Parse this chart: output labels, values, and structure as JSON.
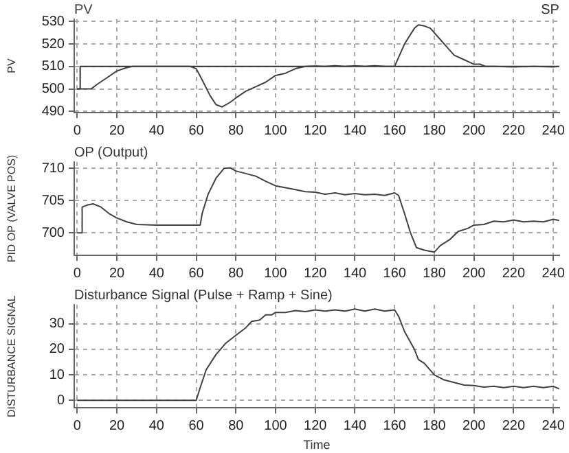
{
  "chart_data": [
    {
      "type": "line",
      "ylabel": "PV",
      "xlim": [
        -1.5,
        243
      ],
      "xticks": [
        0,
        20,
        40,
        60,
        80,
        100,
        120,
        140,
        160,
        180,
        200,
        220,
        240
      ],
      "ylim": [
        489.5,
        531
      ],
      "yticks": [
        490,
        500,
        510,
        520,
        530
      ],
      "grid": true,
      "legend": "top",
      "series": [
        {
          "name": "PV",
          "color": "#404040",
          "x": [
            0,
            7,
            10,
            15,
            20,
            25,
            28,
            57,
            60,
            63,
            67,
            70,
            73,
            77,
            80,
            85,
            90,
            95,
            100,
            105,
            110,
            115,
            120,
            125,
            130,
            135,
            140,
            145,
            150,
            155,
            160,
            162,
            165,
            170,
            172,
            175,
            178,
            182,
            186,
            190,
            195,
            200,
            203,
            206,
            210,
            220,
            230,
            240,
            243
          ],
          "values": [
            500,
            500,
            502,
            505,
            508,
            509.5,
            510,
            510,
            509,
            504,
            497,
            493,
            492,
            494,
            496,
            499,
            501,
            503,
            506,
            507,
            509,
            510,
            510.2,
            510,
            510.3,
            510,
            510.3,
            510,
            510.3,
            510,
            510,
            514,
            520,
            527,
            528.5,
            528,
            527,
            523,
            519,
            515,
            513,
            511,
            511,
            510,
            510,
            509.8,
            510,
            509.8,
            510
          ]
        },
        {
          "name": "SP",
          "color": "#303030",
          "x": [
            0,
            1.5,
            1.5,
            243
          ],
          "values": [
            500,
            500,
            510,
            510
          ]
        }
      ]
    },
    {
      "type": "line",
      "title": "OP (Output)",
      "ylabel": "PID OP (VALVE POS)",
      "xlim": [
        -1.5,
        243
      ],
      "xticks": [
        0,
        20,
        40,
        60,
        80,
        100,
        120,
        140,
        160,
        180,
        200,
        220,
        240
      ],
      "ylim": [
        696.5,
        711
      ],
      "yticks": [
        700,
        705,
        710
      ],
      "grid": true,
      "series": [
        {
          "color": "#404040",
          "x": [
            0,
            2,
            2.5,
            5,
            8,
            12,
            16,
            20,
            25,
            30,
            40,
            62,
            63,
            66,
            70,
            74,
            77,
            80,
            85,
            90,
            95,
            100,
            105,
            110,
            115,
            120,
            125,
            130,
            135,
            140,
            145,
            150,
            155,
            160,
            162,
            165,
            168,
            171,
            175,
            180,
            183,
            188,
            192,
            197,
            200,
            205,
            210,
            215,
            220,
            225,
            230,
            235,
            240,
            243
          ],
          "values": [
            700,
            700,
            704,
            704.3,
            704.5,
            704,
            703,
            702.3,
            701.7,
            701.3,
            701.2,
            701.2,
            703,
            706,
            708.5,
            710,
            710.1,
            709.6,
            709.2,
            708.8,
            708,
            707.3,
            707,
            706.7,
            706.4,
            706.3,
            706,
            706.2,
            705.9,
            706.1,
            705.9,
            706,
            705.8,
            706.2,
            705.8,
            703,
            700,
            697.7,
            697.3,
            697,
            698,
            699,
            700.2,
            700.7,
            701.2,
            701.3,
            701.8,
            701.7,
            702,
            701.7,
            701.8,
            701.7,
            702.1,
            701.9
          ]
        }
      ]
    },
    {
      "type": "line",
      "title": "Disturbance Signal (Pulse + Ramp + Sine)",
      "xlabel": "Time",
      "ylabel": "DISTURBANCE SIGNAL",
      "xlim": [
        -1.5,
        243
      ],
      "xticks": [
        0,
        20,
        40,
        60,
        80,
        100,
        120,
        140,
        160,
        180,
        200,
        220,
        240
      ],
      "ylim": [
        -3,
        37.5
      ],
      "yticks": [
        0,
        10,
        20,
        30
      ],
      "grid": true,
      "series": [
        {
          "color": "#404040",
          "x": [
            0,
            60,
            62,
            65,
            70,
            75,
            80,
            85,
            88,
            92,
            95,
            98,
            100,
            105,
            110,
            115,
            120,
            125,
            130,
            135,
            140,
            145,
            150,
            155,
            160,
            162,
            165,
            170,
            172,
            175,
            180,
            185,
            190,
            195,
            200,
            205,
            210,
            215,
            220,
            225,
            230,
            235,
            240,
            243
          ],
          "values": [
            0,
            0,
            5,
            12,
            18,
            22.5,
            25.5,
            28.5,
            31,
            31.5,
            33.5,
            33.5,
            34.5,
            34.5,
            35.2,
            34.8,
            35.5,
            35,
            35.5,
            35,
            35.8,
            35,
            35.8,
            35,
            35.5,
            33,
            27,
            20,
            16,
            14.5,
            10,
            8,
            7,
            6,
            5.8,
            5.2,
            5.5,
            5,
            5.5,
            5,
            5.5,
            5,
            5.5,
            4.5
          ]
        }
      ]
    }
  ]
}
